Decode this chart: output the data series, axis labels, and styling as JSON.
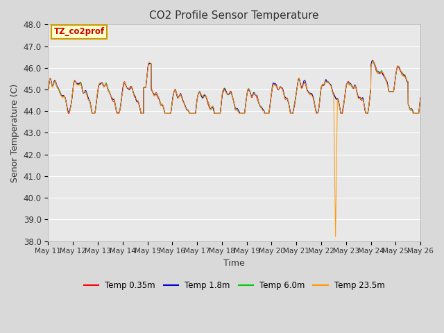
{
  "title": "CO2 Profile Sensor Temperature",
  "xlabel": "Time",
  "ylabel": "Senor Temperature (C)",
  "ylim": [
    38.0,
    48.0
  ],
  "yticks": [
    38.0,
    39.0,
    40.0,
    41.0,
    42.0,
    43.0,
    44.0,
    45.0,
    46.0,
    47.0,
    48.0
  ],
  "xtick_labels": [
    "May 11",
    "May 12",
    "May 13",
    "May 14",
    "May 15",
    "May 16",
    "May 17",
    "May 18",
    "May 19",
    "May 20",
    "May 21",
    "May 22",
    "May 23",
    "May 24",
    "May 25",
    "May 26"
  ],
  "legend_labels": [
    "Temp 0.35m",
    "Temp 1.8m",
    "Temp 6.0m",
    "Temp 23.5m"
  ],
  "line_colors": [
    "#ff0000",
    "#0000cc",
    "#00cc00",
    "#ff9900"
  ],
  "annotation_text": "TZ_co2prof",
  "annotation_color": "#cc0000",
  "annotation_bg": "#ffffcc",
  "annotation_border": "#cc9900",
  "fig_bg_color": "#d9d9d9",
  "plot_bg_color": "#e8e8e8",
  "grid_color": "#ffffff",
  "n_points": 3000,
  "spike_day": 11.5,
  "spike_val": 38.2,
  "n_days": 15
}
